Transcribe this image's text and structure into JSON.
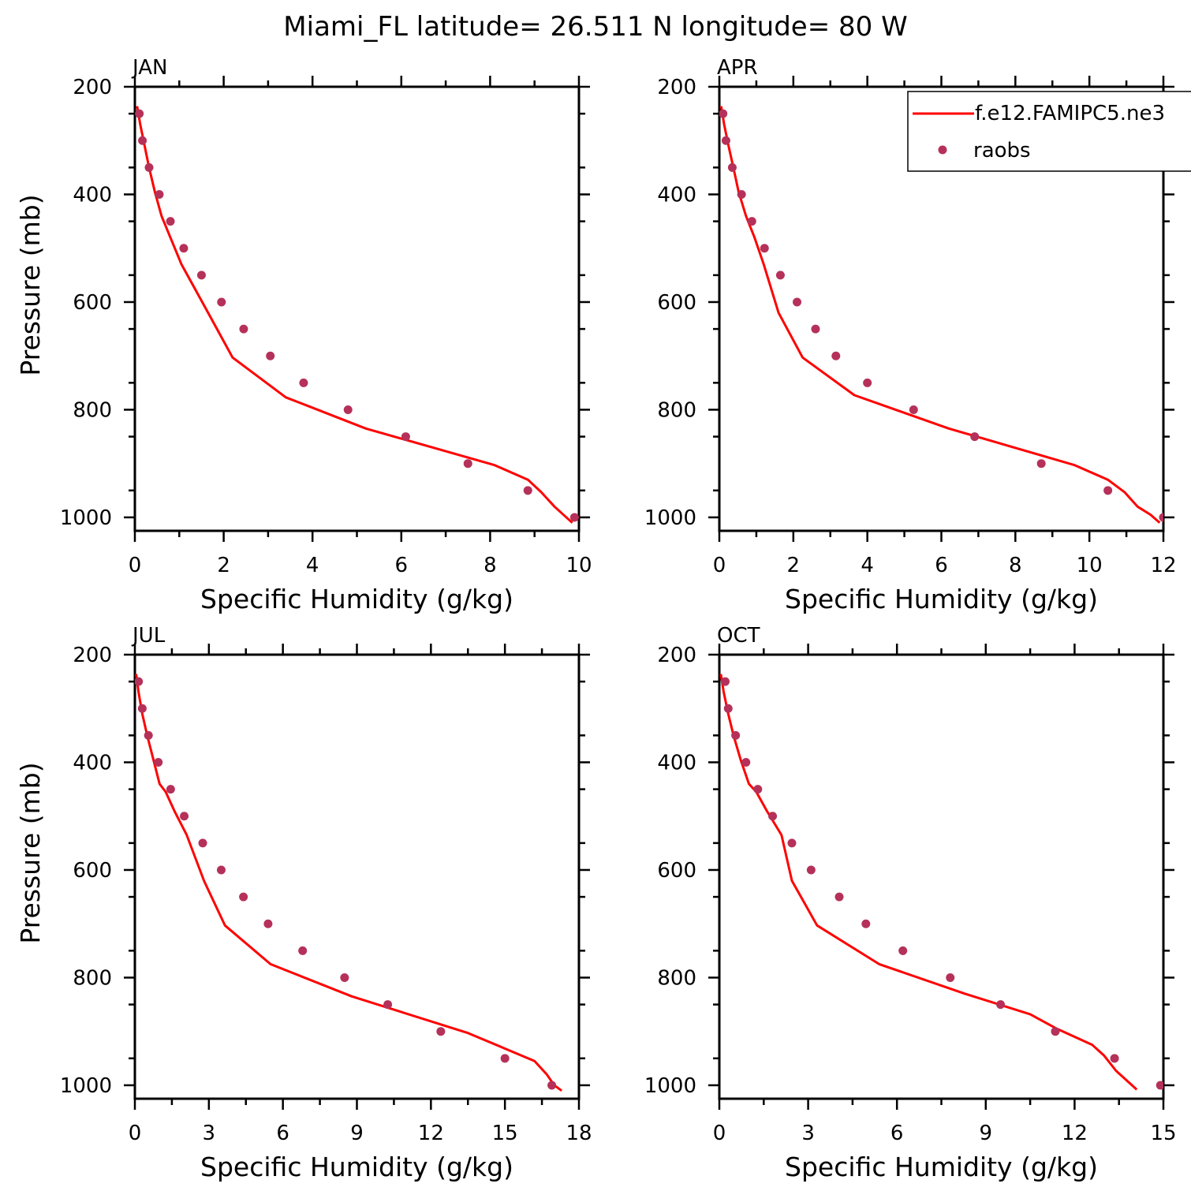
{
  "title": "Miami_FL  latitude= 26.511 N longitude= 80 W",
  "colors": {
    "model": "#ff0000",
    "obs": "#b5315a"
  },
  "chart_data": [
    {
      "type": "line",
      "panel": "JAN",
      "xlabel": "Specific Humidity (g/kg)",
      "ylabel": "Pressure (mb)",
      "xlim": [
        0,
        10
      ],
      "ylim": [
        1025,
        200
      ],
      "xticks": [
        0,
        2,
        4,
        6,
        8,
        10
      ],
      "yticks": [
        200,
        400,
        600,
        800,
        1000
      ],
      "legend": null,
      "series": [
        {
          "name": "f.e12.FAMIPC5.ne3",
          "kind": "line",
          "x": [
            0.05,
            0.12,
            0.22,
            0.32,
            0.45,
            0.6,
            0.8,
            1.05,
            1.35,
            1.65,
            2.2,
            3.4,
            5.2,
            8.1,
            8.85,
            9.15,
            9.45,
            9.85
          ],
          "y": [
            236,
            270,
            310,
            350,
            395,
            440,
            480,
            530,
            575,
            620,
            703,
            777,
            835,
            903,
            930,
            953,
            980,
            1010
          ]
        },
        {
          "name": "raobs",
          "kind": "scatter",
          "x": [
            0.1,
            0.17,
            0.32,
            0.55,
            0.8,
            1.1,
            1.5,
            1.95,
            2.45,
            3.05,
            3.8,
            4.8,
            6.1,
            7.5,
            8.85,
            9.9
          ],
          "y": [
            250,
            300,
            350,
            400,
            450,
            500,
            550,
            600,
            650,
            700,
            750,
            800,
            850,
            900,
            950,
            1000
          ]
        }
      ]
    },
    {
      "type": "line",
      "panel": "APR",
      "xlabel": "Specific Humidity (g/kg)",
      "ylabel": "",
      "xlim": [
        0,
        12
      ],
      "ylim": [
        1025,
        200
      ],
      "xticks": [
        0,
        2,
        4,
        6,
        8,
        10,
        12
      ],
      "yticks": [
        200,
        400,
        600,
        800,
        1000
      ],
      "legend": "top-right",
      "series": [
        {
          "name": "f.e12.FAMIPC5.ne3",
          "kind": "line",
          "x": [
            0.05,
            0.13,
            0.25,
            0.38,
            0.52,
            0.72,
            0.95,
            1.2,
            1.6,
            2.25,
            3.65,
            6.2,
            9.6,
            10.5,
            10.95,
            11.3,
            11.65,
            11.9
          ],
          "y": [
            236,
            270,
            310,
            350,
            395,
            440,
            480,
            530,
            620,
            703,
            773,
            835,
            903,
            930,
            953,
            980,
            995,
            1010
          ]
        },
        {
          "name": "raobs",
          "kind": "scatter",
          "x": [
            0.1,
            0.18,
            0.35,
            0.6,
            0.88,
            1.22,
            1.65,
            2.1,
            2.6,
            3.15,
            4.0,
            5.25,
            6.9,
            8.7,
            10.5,
            12.0
          ],
          "y": [
            250,
            300,
            350,
            400,
            450,
            500,
            550,
            600,
            650,
            700,
            750,
            800,
            850,
            900,
            950,
            1000
          ]
        }
      ]
    },
    {
      "type": "line",
      "panel": "JUL",
      "xlabel": "Specific Humidity (g/kg)",
      "ylabel": "Pressure (mb)",
      "xlim": [
        0,
        18
      ],
      "ylim": [
        1025,
        200
      ],
      "xticks": [
        0,
        3,
        6,
        9,
        12,
        15,
        18
      ],
      "yticks": [
        200,
        400,
        600,
        800,
        1000
      ],
      "legend": null,
      "series": [
        {
          "name": "f.e12.FAMIPC5.ne3",
          "kind": "line",
          "x": [
            0.05,
            0.15,
            0.3,
            0.5,
            0.75,
            1.0,
            1.25,
            1.6,
            2.1,
            2.8,
            3.65,
            5.5,
            8.8,
            13.5,
            16.2,
            16.7,
            17.0,
            17.3
          ],
          "y": [
            236,
            270,
            310,
            350,
            395,
            440,
            455,
            490,
            535,
            620,
            703,
            775,
            835,
            903,
            955,
            980,
            1000,
            1010
          ]
        },
        {
          "name": "raobs",
          "kind": "scatter",
          "x": [
            0.15,
            0.3,
            0.55,
            0.95,
            1.45,
            2.0,
            2.75,
            3.5,
            4.4,
            5.4,
            6.8,
            8.5,
            10.25,
            12.4,
            15.0,
            16.9
          ],
          "y": [
            250,
            300,
            350,
            400,
            450,
            500,
            550,
            600,
            650,
            700,
            750,
            800,
            850,
            900,
            950,
            1000
          ]
        }
      ]
    },
    {
      "type": "line",
      "panel": "OCT",
      "xlabel": "Specific Humidity (g/kg)",
      "ylabel": "",
      "xlim": [
        0,
        15
      ],
      "ylim": [
        1025,
        200
      ],
      "xticks": [
        0,
        3,
        6,
        9,
        12,
        15
      ],
      "yticks": [
        200,
        400,
        600,
        800,
        1000
      ],
      "legend": null,
      "series": [
        {
          "name": "f.e12.FAMIPC5.ne3",
          "kind": "line",
          "x": [
            0.05,
            0.15,
            0.3,
            0.48,
            0.72,
            1.0,
            1.25,
            1.6,
            2.1,
            2.45,
            3.3,
            5.4,
            8.3,
            10.5,
            11.4,
            12.6,
            13.0,
            13.4,
            14.1
          ],
          "y": [
            236,
            270,
            310,
            350,
            395,
            440,
            455,
            490,
            535,
            620,
            703,
            775,
            830,
            868,
            895,
            925,
            945,
            973,
            1008
          ]
        },
        {
          "name": "raobs",
          "kind": "scatter",
          "x": [
            0.2,
            0.3,
            0.55,
            0.9,
            1.3,
            1.8,
            2.45,
            3.1,
            4.05,
            4.95,
            6.2,
            7.8,
            9.5,
            11.35,
            13.35,
            14.9
          ],
          "y": [
            250,
            300,
            350,
            400,
            450,
            500,
            550,
            600,
            650,
            700,
            750,
            800,
            850,
            900,
            950,
            1000
          ]
        }
      ]
    }
  ]
}
